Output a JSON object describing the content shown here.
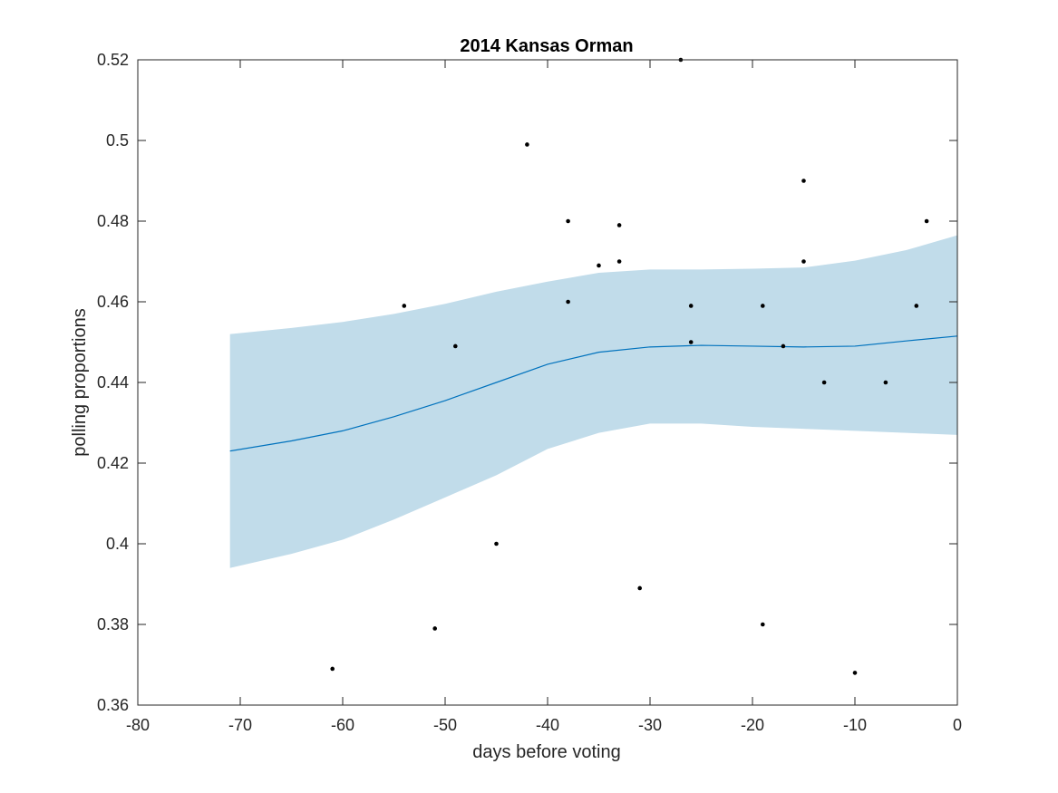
{
  "chart_data": {
    "type": "scatter",
    "title": "2014 Kansas Orman",
    "xlabel": "days before voting",
    "ylabel": "polling proportions",
    "xlim": [
      -80,
      0
    ],
    "ylim": [
      0.36,
      0.52
    ],
    "xticks": [
      -80,
      -70,
      -60,
      -50,
      -40,
      -30,
      -20,
      -10,
      0
    ],
    "yticks": [
      0.36,
      0.38,
      0.4,
      0.42,
      0.44,
      0.46,
      0.48,
      0.5,
      0.52
    ],
    "xtick_labels": [
      "-80",
      "-70",
      "-60",
      "-50",
      "-40",
      "-30",
      "-20",
      "-10",
      "0"
    ],
    "ytick_labels": [
      "0.36",
      "0.38",
      "0.4",
      "0.42",
      "0.44",
      "0.46",
      "0.48",
      "0.5",
      "0.52"
    ],
    "grid": false,
    "colors": {
      "band": "#c1dcea",
      "line": "#0072bd",
      "points": "#000000",
      "axes": "#262626"
    },
    "points": {
      "x": [
        -61,
        -54,
        -51,
        -49,
        -45,
        -42,
        -38,
        -38,
        -35,
        -33,
        -33,
        -31,
        -27,
        -26,
        -26,
        -19,
        -19,
        -17,
        -15,
        -15,
        -13,
        -10,
        -7,
        -4,
        -3
      ],
      "y": [
        0.369,
        0.459,
        0.379,
        0.449,
        0.4,
        0.499,
        0.48,
        0.46,
        0.469,
        0.479,
        0.47,
        0.389,
        0.52,
        0.459,
        0.45,
        0.459,
        0.38,
        0.449,
        0.49,
        0.47,
        0.44,
        0.368,
        0.44,
        0.459,
        0.48
      ]
    },
    "fit": {
      "x": [
        -71,
        -65,
        -60,
        -55,
        -50,
        -45,
        -40,
        -35,
        -30,
        -25,
        -20,
        -15,
        -10,
        -5,
        0
      ],
      "mean": [
        0.423,
        0.4255,
        0.428,
        0.4315,
        0.4355,
        0.44,
        0.4445,
        0.4475,
        0.4488,
        0.4492,
        0.449,
        0.4488,
        0.449,
        0.4503,
        0.4515
      ],
      "upper": [
        0.452,
        0.4535,
        0.455,
        0.457,
        0.4595,
        0.4625,
        0.465,
        0.4672,
        0.468,
        0.468,
        0.4682,
        0.4685,
        0.4702,
        0.4728,
        0.4765
      ],
      "lower": [
        0.394,
        0.3975,
        0.401,
        0.406,
        0.4115,
        0.417,
        0.4235,
        0.4275,
        0.4298,
        0.4298,
        0.429,
        0.4285,
        0.428,
        0.4275,
        0.427
      ]
    }
  }
}
